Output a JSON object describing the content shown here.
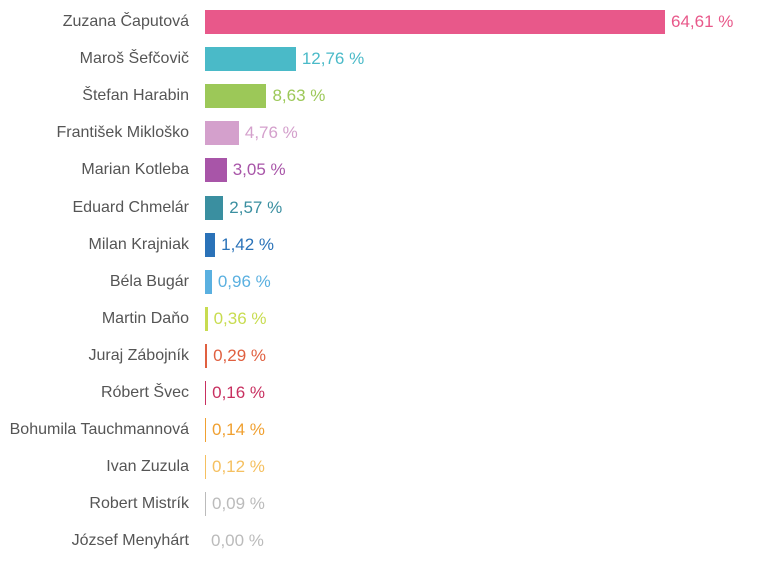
{
  "chart_data": {
    "type": "bar",
    "orientation": "horizontal",
    "title": "",
    "xlabel": "",
    "ylabel": "",
    "xlim": [
      0,
      64.61
    ],
    "grid": false,
    "legend": "none",
    "categories": [
      "Zuzana Čaputová",
      "Maroš Šefčovič",
      "Štefan Harabin",
      "František Mikloško",
      "Marian Kotleba",
      "Eduard Chmelár",
      "Milan Krajniak",
      "Béla Bugár",
      "Martin Daňo",
      "Juraj Zábojník",
      "Róbert Švec",
      "Bohumila Tauchmannová",
      "Ivan Zuzula",
      "Robert Mistrík",
      "József Menyhárt"
    ],
    "values": [
      64.61,
      12.76,
      8.63,
      4.76,
      3.05,
      2.57,
      1.42,
      0.96,
      0.36,
      0.29,
      0.16,
      0.14,
      0.12,
      0.09,
      0.0
    ],
    "value_labels": [
      "64,61 %",
      "12,76 %",
      "8,63 %",
      "4,76 %",
      "3,05 %",
      "2,57 %",
      "1,42 %",
      "0,96 %",
      "0,36 %",
      "0,29 %",
      "0,16 %",
      "0,14 %",
      "0,12 %",
      "0,09 %",
      "0,00 %"
    ],
    "colors": [
      "#e8588a",
      "#4abac8",
      "#9cc858",
      "#d4a0cc",
      "#a855a8",
      "#3a8fa0",
      "#2a72b8",
      "#5ab0e0",
      "#c8dc50",
      "#e06040",
      "#c83060",
      "#f0a030",
      "#f5c060",
      "#bbbbbb",
      "#bbbbbb"
    ]
  }
}
